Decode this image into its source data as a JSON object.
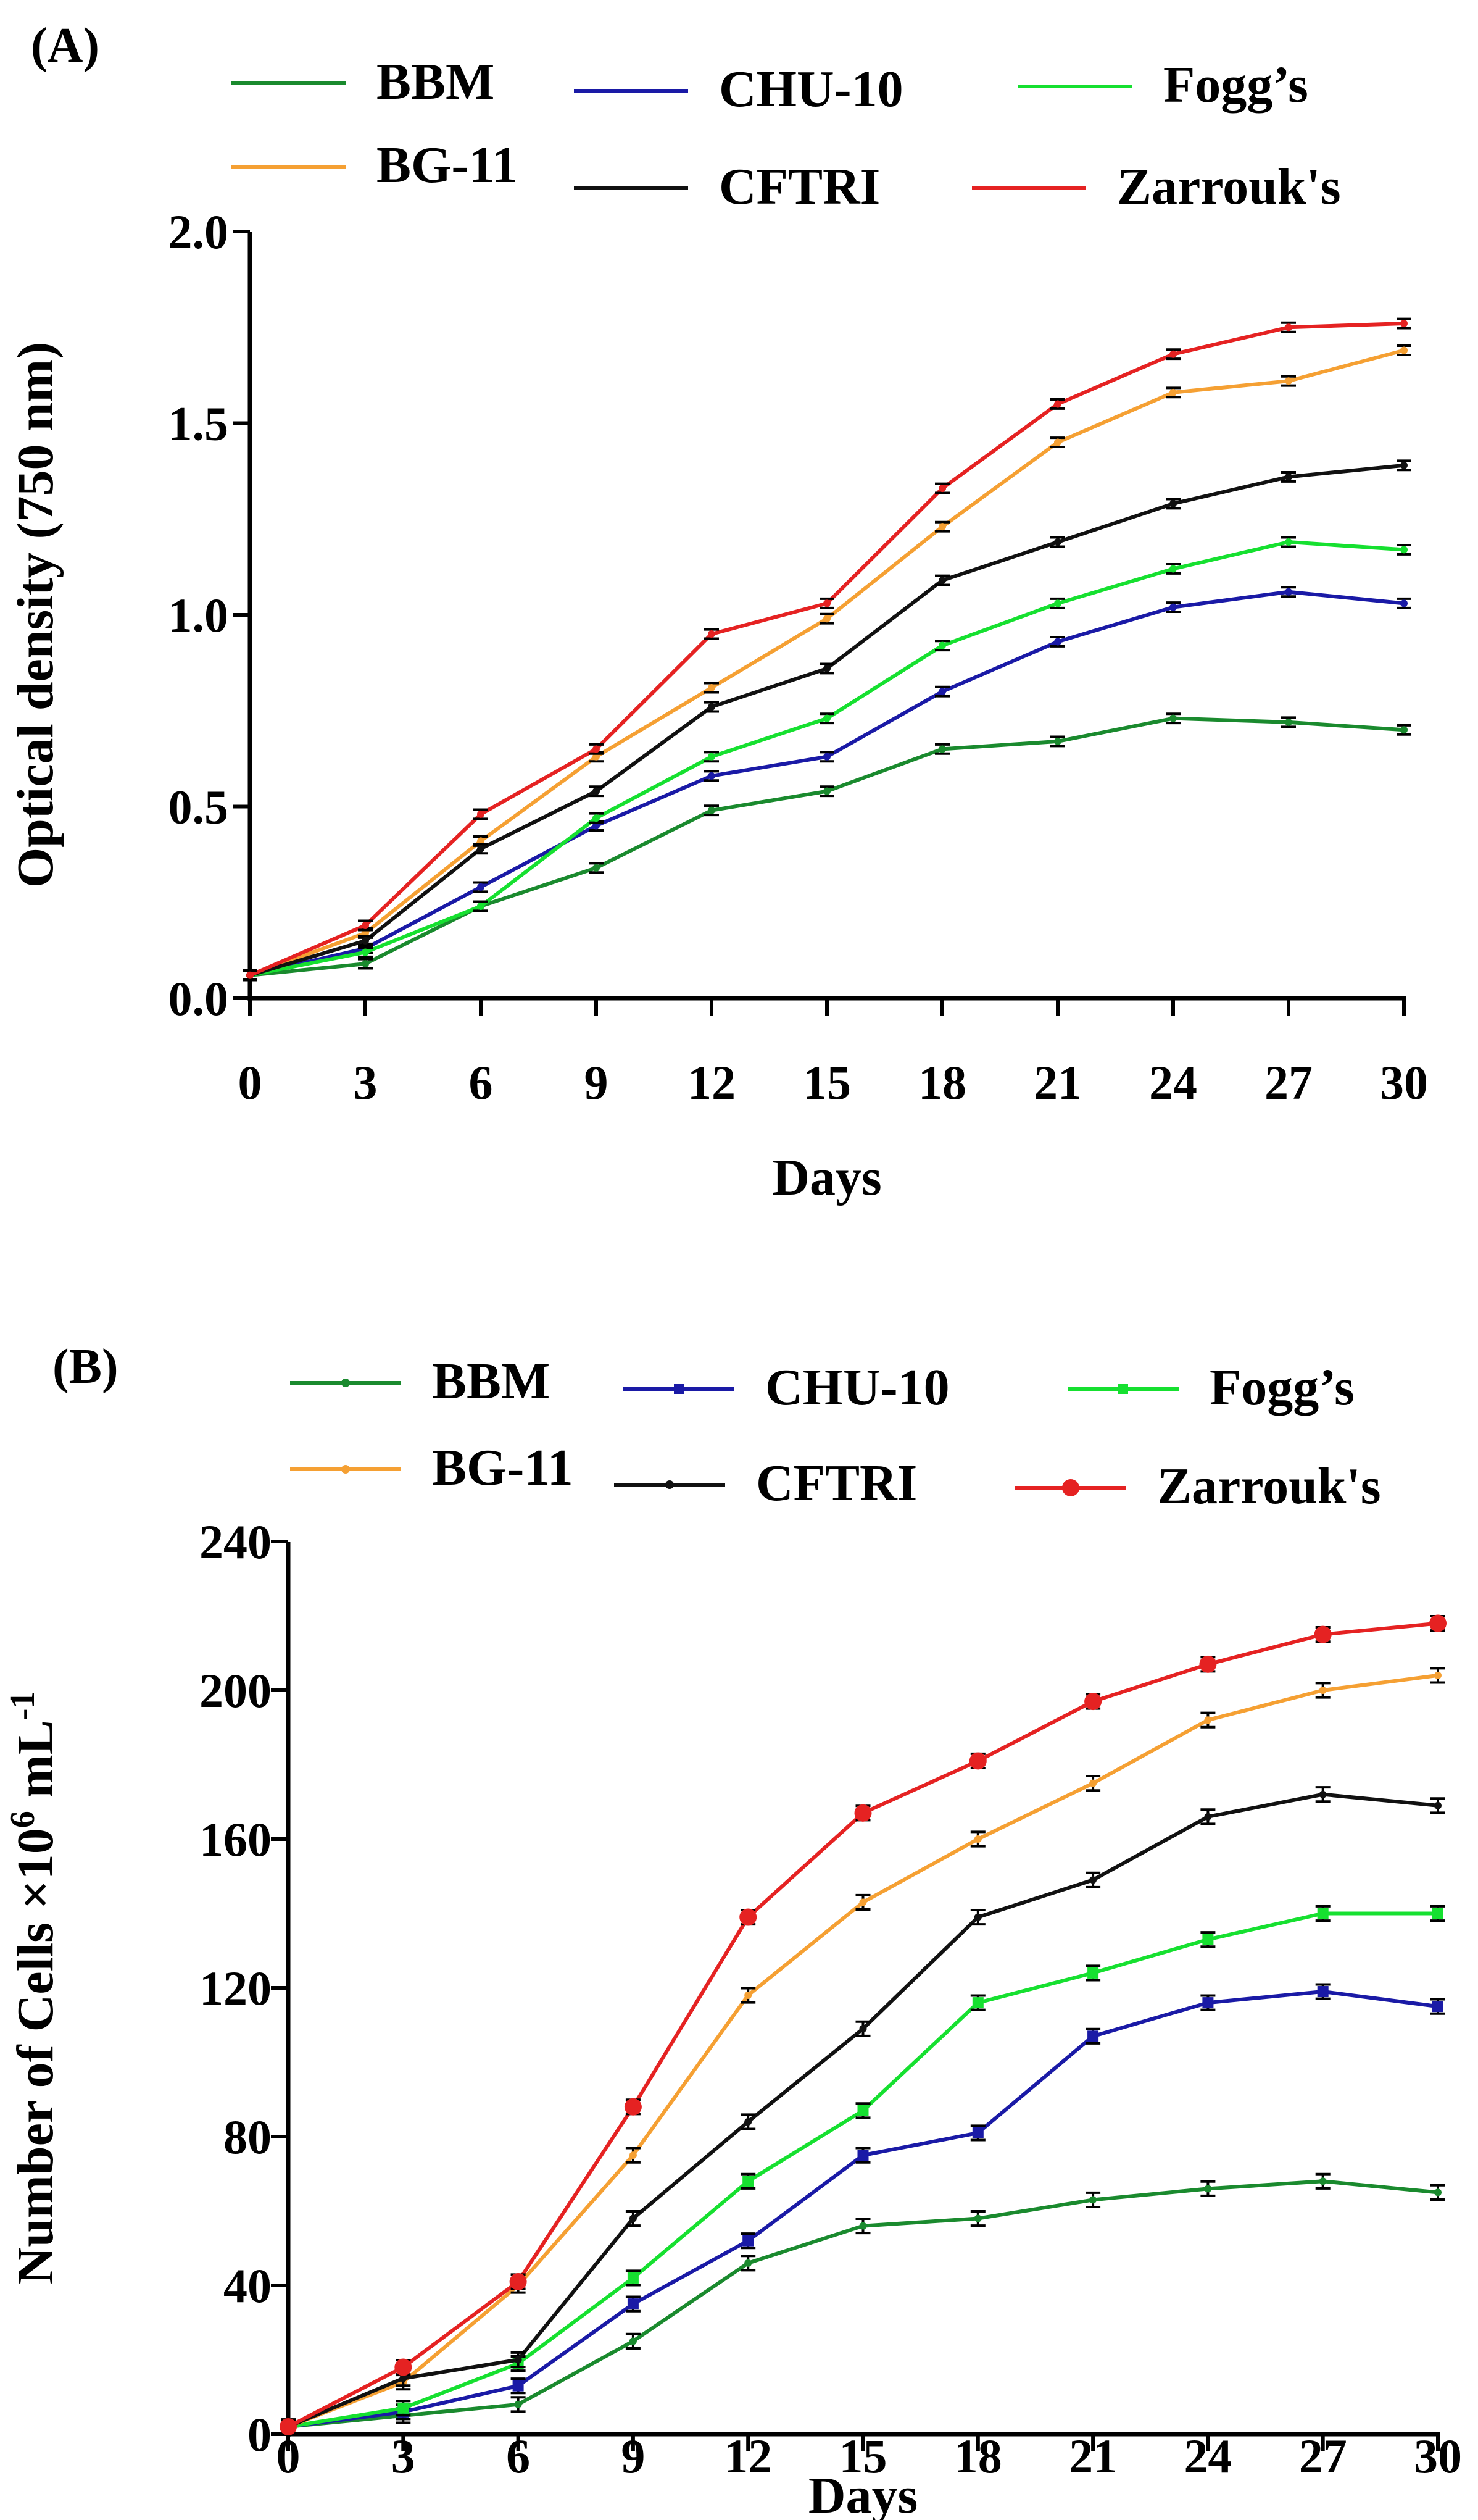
{
  "chart_data": [
    {
      "panel": "(A)",
      "type": "line",
      "xlabel": "Days",
      "ylabel": "Optical density (750 nm)",
      "x": [
        0,
        3,
        6,
        9,
        12,
        15,
        18,
        21,
        24,
        27,
        30
      ],
      "xlim": [
        0,
        30
      ],
      "ylim": [
        0,
        2.0
      ],
      "yticks": [
        "0.0",
        "0.5",
        "1.0",
        "1.5",
        "2.0"
      ],
      "grid": false,
      "legend_position": "top",
      "series": [
        {
          "name": "BBM",
          "color": "#1a8a2e",
          "values": [
            0.06,
            0.09,
            0.24,
            0.34,
            0.49,
            0.54,
            0.65,
            0.67,
            0.73,
            0.72,
            0.7
          ]
        },
        {
          "name": "CHU-10",
          "color": "#1a1aa6",
          "values": [
            0.06,
            0.13,
            0.29,
            0.45,
            0.58,
            0.63,
            0.8,
            0.93,
            1.02,
            1.06,
            1.03
          ]
        },
        {
          "name": "Fogg’s",
          "color": "#16e030",
          "values": [
            0.06,
            0.12,
            0.24,
            0.47,
            0.63,
            0.73,
            0.92,
            1.03,
            1.12,
            1.19,
            1.17
          ]
        },
        {
          "name": "BG-11",
          "color": "#f5a033",
          "values": [
            0.06,
            0.17,
            0.41,
            0.63,
            0.81,
            0.99,
            1.23,
            1.45,
            1.58,
            1.61,
            1.69
          ]
        },
        {
          "name": "CFTRI",
          "color": "#111111",
          "values": [
            0.06,
            0.15,
            0.39,
            0.54,
            0.76,
            0.86,
            1.09,
            1.19,
            1.29,
            1.36,
            1.39
          ]
        },
        {
          "name": "Zarrouk's",
          "color": "#e52222",
          "values": [
            0.06,
            0.19,
            0.48,
            0.65,
            0.95,
            1.03,
            1.33,
            1.55,
            1.68,
            1.75,
            1.76
          ]
        }
      ]
    },
    {
      "panel": "(B)",
      "type": "line",
      "xlabel": "Days",
      "ylabel": "Number of Cells ×10",
      "ylabel_sup": "6",
      "ylabel_unit": " mL",
      "ylabel_unit_sup": "-1",
      "x": [
        0,
        3,
        6,
        9,
        12,
        15,
        18,
        21,
        24,
        27,
        30
      ],
      "xlim": [
        0,
        30
      ],
      "ylim": [
        0,
        240
      ],
      "yticks": [
        "0",
        "40",
        "80",
        "120",
        "160",
        "200",
        "240"
      ],
      "grid": false,
      "legend_position": "top",
      "series": [
        {
          "name": "BBM",
          "color": "#1a8a2e",
          "marker": "dot",
          "values": [
            2,
            5,
            8,
            25,
            46,
            56,
            58,
            63,
            66,
            68,
            65
          ]
        },
        {
          "name": "CHU-10",
          "color": "#1a1aa6",
          "marker": "square",
          "values": [
            2,
            6,
            13,
            35,
            52,
            75,
            81,
            107,
            116,
            119,
            115
          ]
        },
        {
          "name": "Fogg’s",
          "color": "#16e030",
          "marker": "square",
          "values": [
            2,
            7,
            19,
            42,
            68,
            87,
            116,
            124,
            133,
            140,
            140
          ]
        },
        {
          "name": "BG-11",
          "color": "#f5a033",
          "marker": "dot",
          "values": [
            2,
            14,
            40,
            75,
            118,
            143,
            160,
            175,
            192,
            200,
            204
          ]
        },
        {
          "name": "CFTRI",
          "color": "#111111",
          "marker": "dot",
          "values": [
            2,
            15,
            20,
            58,
            84,
            109,
            139,
            149,
            166,
            172,
            169
          ]
        },
        {
          "name": "Zarrouk's",
          "color": "#e52222",
          "marker": "circle",
          "values": [
            2,
            18,
            41,
            88,
            139,
            167,
            181,
            197,
            207,
            215,
            218
          ]
        }
      ]
    }
  ]
}
